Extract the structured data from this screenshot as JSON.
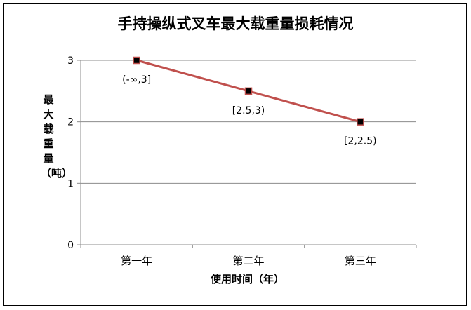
{
  "chart_data": {
    "type": "line",
    "title": "手持操纵式叉车最大载重量损耗情况",
    "xlabel": "使用时间（年）",
    "ylabel": "最大载重量（吨）",
    "categories": [
      "第一年",
      "第二年",
      "第三年"
    ],
    "ylim": [
      0,
      3
    ],
    "yticks": [
      "0",
      "1",
      "2",
      "3"
    ],
    "grid": true,
    "series": [
      {
        "values": [
          3,
          2.5,
          2
        ],
        "labels": [
          "(-∞,3]",
          "[2.5,3)",
          "[2,2.5)"
        ],
        "color": "#c0504d",
        "marker_color": "#000000"
      }
    ]
  }
}
